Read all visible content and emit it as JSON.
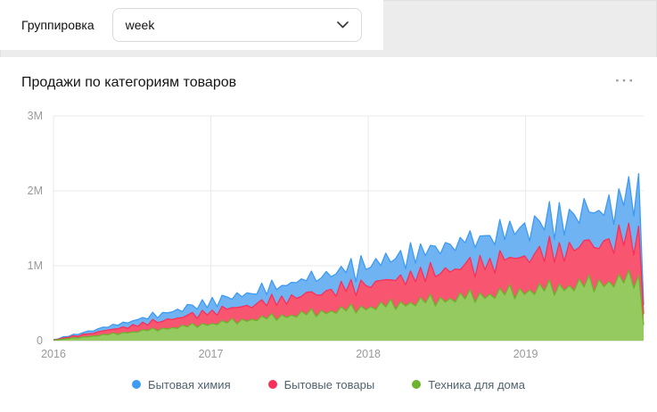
{
  "toolbar": {
    "grouping_label": "Группировка",
    "grouping_value": "week"
  },
  "card": {
    "title": "Продажи по категориям товаров"
  },
  "icons": {
    "more_options": "···",
    "chevron_down": "v"
  },
  "chart_data": {
    "type": "area",
    "stacked": true,
    "title": "Продажи по категориям товаров",
    "interval": "week",
    "value_unit_thousands": true,
    "x_range": [
      2016,
      2019.75
    ],
    "x_ticks": [
      2016,
      2017,
      2018,
      2019
    ],
    "y_max": 3000,
    "y_ticks": [
      {
        "value": 0,
        "label": "0"
      },
      {
        "value": 1000,
        "label": "1M"
      },
      {
        "value": 2000,
        "label": "2M"
      },
      {
        "value": 3000,
        "label": "3M"
      }
    ],
    "grid": true,
    "legend_position": "bottom",
    "series": [
      {
        "name": "Бытовая химия",
        "color": "#3e9bf2",
        "fill": "#6fb3f3",
        "values": [
          3,
          5,
          14,
          13,
          20,
          26,
          20,
          40,
          30,
          41,
          49,
          35,
          66,
          47,
          62,
          72,
          50,
          92,
          64,
          83,
          95,
          65,
          118,
          81,
          104,
          118,
          80,
          144,
          98,
          125,
          141,
          95,
          170,
          115,
          146,
          164,
          110,
          196,
          132,
          167,
          187,
          125,
          222,
          149,
          188,
          210,
          140,
          248,
          166,
          209,
          233,
          155,
          274,
          183,
          230,
          256,
          170,
          300,
          200,
          251,
          279,
          185,
          326,
          217,
          272,
          302,
          200,
          352,
          234,
          293,
          325,
          215,
          378,
          251,
          314,
          348,
          230,
          404,
          268,
          335,
          371,
          245,
          430,
          285,
          356,
          394,
          260,
          456,
          302,
          377,
          417,
          275,
          482,
          319,
          398,
          440,
          290,
          508,
          336,
          419,
          463,
          305,
          534,
          353,
          440,
          486,
          320,
          560,
          370,
          461,
          509,
          335,
          586,
          387,
          482,
          532,
          620,
          520,
          700,
          121
        ]
      },
      {
        "name": "Бытовые товары",
        "color": "#f8305a",
        "fill": "#f85570",
        "values": [
          4,
          7,
          16,
          17,
          26,
          22,
          38,
          39,
          35,
          57,
          47,
          64,
          48,
          76,
          75,
          62,
          97,
          77,
          101,
          74,
          115,
          110,
          90,
          137,
          107,
          139,
          100,
          154,
          145,
          117,
          178,
          138,
          177,
          127,
          192,
          181,
          145,
          218,
          168,
          214,
          153,
          231,
          216,
          173,
          258,
          198,
          252,
          179,
          270,
          251,
          200,
          299,
          228,
          289,
          205,
          308,
          286,
          228,
          339,
          258,
          327,
          232,
          347,
          322,
          255,
          379,
          289,
          365,
          258,
          386,
          357,
          283,
          420,
          319,
          402,
          284,
          424,
          392,
          310,
          460,
          349,
          440,
          310,
          463,
          428,
          338,
          500,
          379,
          478,
          336,
          501,
          463,
          365,
          540,
          410,
          515,
          363,
          540,
          498,
          393,
          581,
          440,
          553,
          389,
          579,
          533,
          421,
          621,
          470,
          590,
          415,
          617,
          569,
          448,
          661,
          500,
          628,
          441,
          655,
          143
        ]
      },
      {
        "name": "Техника для дома",
        "color": "#6eb32c",
        "fill": "#95ca60",
        "values": [
          6,
          12,
          22,
          26,
          39,
          35,
          50,
          51,
          62,
          62,
          84,
          79,
          104,
          82,
          109,
          102,
          118,
          113,
          145,
          132,
          168,
          130,
          168,
          154,
          174,
          163,
          207,
          185,
          232,
          178,
          227,
          205,
          230,
          213,
          268,
          238,
          297,
          225,
          286,
          257,
          286,
          264,
          330,
          292,
          361,
          273,
          344,
          308,
          342,
          314,
          392,
          345,
          426,
          320,
          403,
          360,
          398,
          365,
          453,
          398,
          490,
          368,
          462,
          411,
          454,
          415,
          515,
          451,
          554,
          416,
          521,
          463,
          510,
          465,
          576,
          504,
          619,
          463,
          580,
          514,
          566,
          516,
          638,
          558,
          683,
          511,
          638,
          566,
          622,
          566,
          700,
          611,
          748,
          558,
          697,
          617,
          678,
          617,
          761,
          664,
          812,
          606,
          756,
          669,
          734,
          667,
          823,
          717,
          876,
          654,
          815,
          720,
          790,
          717,
          884,
          770,
          941,
          701,
          874,
          210
        ]
      }
    ]
  }
}
